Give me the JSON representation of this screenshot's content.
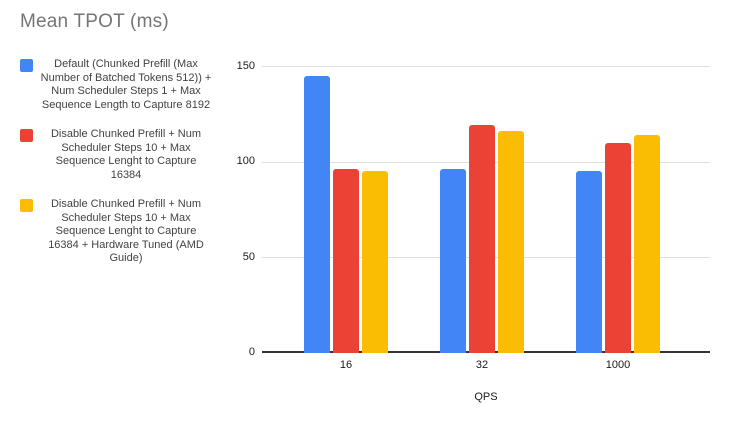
{
  "title": "Mean TPOT (ms)",
  "colors": {
    "series_blue": "#4285F4",
    "series_red": "#EA4335",
    "series_yellow": "#FBBC04",
    "gridline": "#e0e0e0",
    "axis_line": "#333333",
    "title_text": "#757575",
    "legend_text": "#424242",
    "background": "#ffffff"
  },
  "chart_data": {
    "type": "bar",
    "title": "Mean TPOT (ms)",
    "categories": [
      "16",
      "32",
      "1000"
    ],
    "series": [
      {
        "name": "Default (Chunked Prefill (Max Number of Batched Tokens 512)) + Num Scheduler Steps 1 + Max Sequence Length to Capture 8192",
        "color": "#4285F4",
        "values": [
          145,
          96,
          95
        ]
      },
      {
        "name": "Disable Chunked Prefill + Num Scheduler Steps 10 + Max Sequence Lenght to Capture 16384",
        "color": "#EA4335",
        "values": [
          96,
          119,
          110
        ]
      },
      {
        "name": "Disable Chunked Prefill + Num Scheduler Steps 10 + Max Sequence Lenght to Capture 16384 + Hardware Tuned (AMD Guide)",
        "color": "#FBBC04",
        "values": [
          95,
          116,
          114
        ]
      }
    ],
    "xlabel": "QPS",
    "ylabel": "",
    "ylim": [
      0,
      150
    ],
    "yticks": [
      0,
      50,
      100,
      150
    ],
    "grid": true,
    "legend_position": "left"
  }
}
